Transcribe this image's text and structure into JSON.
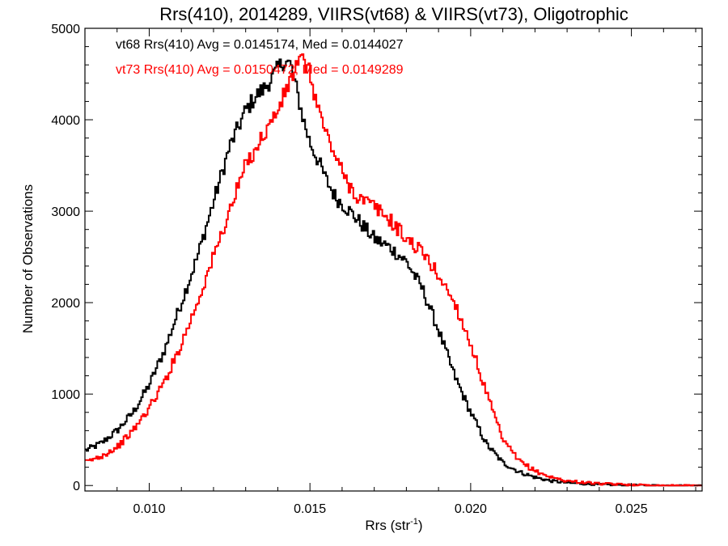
{
  "chart_data": {
    "type": "line",
    "title": "Rrs(410), 2014289, VIIRS(vt68) & VIIRS(vt73), Oligotrophic",
    "xlabel": "Rrs (str",
    "xlabel_sup": "-1",
    "xlabel_end": ")",
    "ylabel": "Number of Observations",
    "xlim": [
      0.008,
      0.0272
    ],
    "ylim": [
      -60,
      5000
    ],
    "x_ticks": [
      0.01,
      0.015,
      0.02,
      0.025
    ],
    "x_tick_labels": [
      "0.010",
      "0.015",
      "0.020",
      "0.025"
    ],
    "y_ticks": [
      0,
      1000,
      2000,
      3000,
      4000,
      5000
    ],
    "y_tick_labels": [
      "0",
      "1000",
      "2000",
      "3000",
      "4000",
      "5000"
    ],
    "grid": false,
    "legend_position": "top-left",
    "series": [
      {
        "name": "vt68",
        "legend_text": "vt68 Rrs(410) Avg = 0.0145174, Med = 0.0144027",
        "color": "#000000",
        "x": [
          0.008,
          0.0085,
          0.009,
          0.0095,
          0.01,
          0.0105,
          0.011,
          0.0115,
          0.012,
          0.0125,
          0.013,
          0.0133,
          0.0136,
          0.0139,
          0.0142,
          0.0144,
          0.0146,
          0.0148,
          0.015,
          0.0152,
          0.0155,
          0.0158,
          0.0161,
          0.0165,
          0.017,
          0.0175,
          0.018,
          0.0185,
          0.019,
          0.0195,
          0.02,
          0.0205,
          0.021,
          0.0215,
          0.022,
          0.0225,
          0.023,
          0.024,
          0.025,
          0.026,
          0.0272
        ],
        "y": [
          380,
          460,
          600,
          800,
          1100,
          1500,
          2000,
          2500,
          3100,
          3700,
          4100,
          4250,
          4350,
          4500,
          4650,
          4600,
          4300,
          4000,
          3750,
          3600,
          3350,
          3150,
          3050,
          2900,
          2700,
          2600,
          2450,
          2150,
          1700,
          1200,
          800,
          450,
          250,
          150,
          90,
          50,
          30,
          10,
          5,
          0,
          0
        ]
      },
      {
        "name": "vt73",
        "legend_text": "vt73 Rrs(410) Avg = 0.0150472, Med = 0.0149289",
        "color": "#ff0000",
        "x": [
          0.008,
          0.0085,
          0.009,
          0.0095,
          0.01,
          0.0105,
          0.011,
          0.0115,
          0.012,
          0.0125,
          0.013,
          0.0135,
          0.014,
          0.0143,
          0.0146,
          0.0148,
          0.015,
          0.0152,
          0.0155,
          0.0158,
          0.0161,
          0.0165,
          0.017,
          0.0175,
          0.018,
          0.0185,
          0.019,
          0.0195,
          0.02,
          0.0205,
          0.021,
          0.0215,
          0.022,
          0.0225,
          0.023,
          0.024,
          0.025,
          0.026,
          0.0272
        ],
        "y": [
          250,
          320,
          420,
          600,
          850,
          1150,
          1550,
          2000,
          2500,
          3000,
          3500,
          3800,
          4100,
          4350,
          4600,
          4650,
          4500,
          4200,
          3850,
          3600,
          3350,
          3150,
          3050,
          2900,
          2700,
          2550,
          2300,
          2000,
          1550,
          1000,
          500,
          270,
          160,
          90,
          50,
          20,
          8,
          0,
          0
        ]
      }
    ]
  }
}
